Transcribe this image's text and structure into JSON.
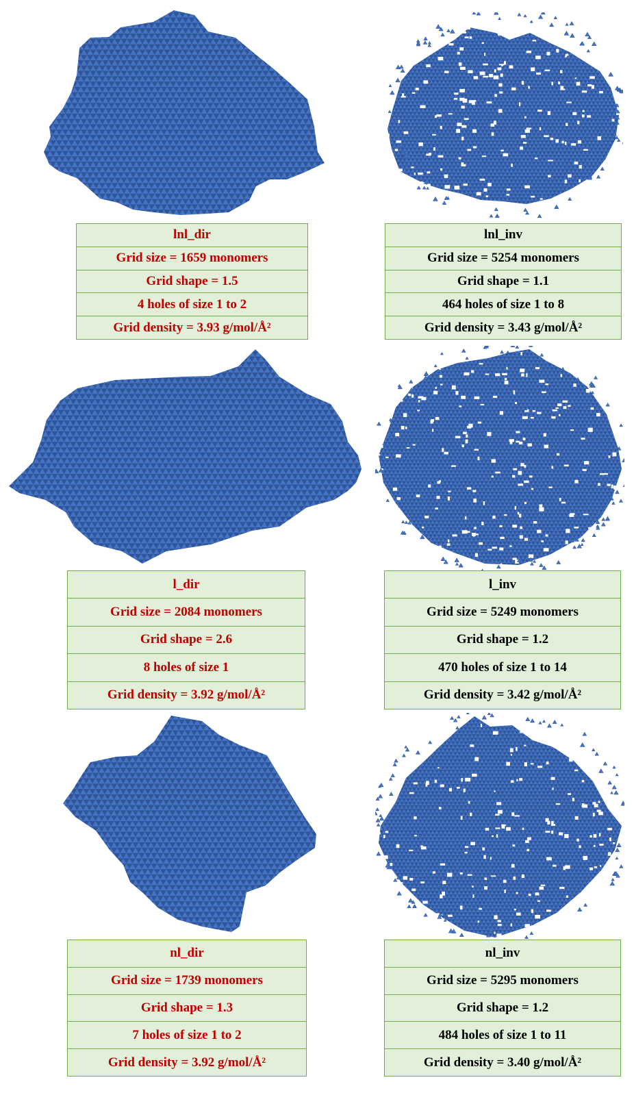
{
  "palette": {
    "monomer": "#4472c4",
    "monomer_edge": "#2f5597",
    "panel_fill": "#e2efd9",
    "panel_border": "#70ad47",
    "dir_text": "#c00000",
    "inv_text": "#000000"
  },
  "panels": [
    {
      "id": "lnl_dir",
      "kind": "dir",
      "title": "lnl_dir",
      "grid_size": "Grid size = 1659 monomers",
      "grid_shape": "Grid shape = 1.5",
      "holes": "4 holes of size 1 to 2",
      "density": "Grid density = 3.93 g/mol/Å²"
    },
    {
      "id": "lnl_inv",
      "kind": "inv",
      "title": "lnl_inv",
      "grid_size": "Grid size = 5254 monomers",
      "grid_shape": "Grid shape = 1.1",
      "holes": "464 holes of size 1 to 8",
      "density": "Grid density = 3.43 g/mol/Å²"
    },
    {
      "id": "l_dir",
      "kind": "dir",
      "title": "l_dir",
      "grid_size": "Grid size = 2084 monomers",
      "grid_shape": "Grid shape = 2.6",
      "holes": "8 holes of size 1",
      "density": "Grid density = 3.92 g/mol/Å²"
    },
    {
      "id": "l_inv",
      "kind": "inv",
      "title": "l_inv",
      "grid_size": "Grid size = 5249 monomers",
      "grid_shape": "Grid shape = 1.2",
      "holes": "470 holes of size 1 to 14",
      "density": "Grid density = 3.42 g/mol/Å²"
    },
    {
      "id": "nl_dir",
      "kind": "dir",
      "title": "nl_dir",
      "grid_size": "Grid size = 1739 monomers",
      "grid_shape": "Grid shape = 1.3",
      "holes": "7 holes of size 1 to 2",
      "density": "Grid density = 3.92 g/mol/Å²"
    },
    {
      "id": "nl_inv",
      "kind": "inv",
      "title": "nl_inv",
      "grid_size": "Grid size = 5295 monomers",
      "grid_shape": "Grid shape = 1.2",
      "holes": "484 holes of size 1 to 11",
      "density": "Grid density = 3.40 g/mol/Å²"
    }
  ]
}
